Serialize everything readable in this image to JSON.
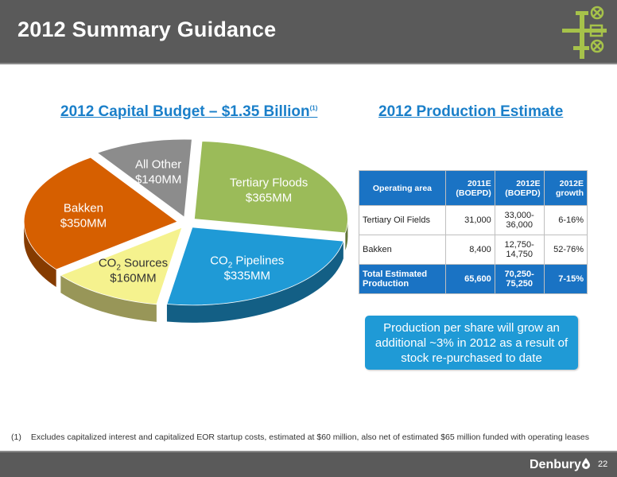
{
  "header": {
    "title": "2012 Summary Guidance"
  },
  "left_section": {
    "title": "2012 Capital Budget – $1.35 Billion",
    "footnote_ref": "(1)"
  },
  "right_section": {
    "title": "2012 Production Estimate"
  },
  "chart_data": {
    "type": "pie",
    "title": "2012 Capital Budget – $1.35 Billion",
    "unit": "$MM",
    "slices": [
      {
        "name": "Tertiary Floods",
        "value": 365,
        "label_line1": "Tertiary Floods",
        "label_line2": "$365MM",
        "color": "#9bbb59"
      },
      {
        "name": "CO2 Pipelines",
        "value": 335,
        "label_line1": "CO",
        "label_sub": "2",
        "label_line1b": " Pipelines",
        "label_line2": "$335MM",
        "color": "#1f9ad6"
      },
      {
        "name": "CO2 Sources",
        "value": 160,
        "label_line1": "CO",
        "label_sub": "2",
        "label_line1b": " Sources",
        "label_line2": "$160MM",
        "color": "#f5f28e"
      },
      {
        "name": "Bakken",
        "value": 350,
        "label_line1": "Bakken",
        "label_line2": "$350MM",
        "color": "#d65f00"
      },
      {
        "name": "All Other",
        "value": 140,
        "label_line1": "All Other",
        "label_line2": "$140MM",
        "color": "#8c8c8c"
      }
    ]
  },
  "table": {
    "headers": [
      {
        "line1": "Operating area",
        "line2": ""
      },
      {
        "line1": "2011E",
        "line2": "(BOEPD)"
      },
      {
        "line1": "2012E",
        "line2": "(BOEPD)"
      },
      {
        "line1": "2012E",
        "line2": "growth"
      }
    ],
    "rows": [
      {
        "area": "Tertiary Oil Fields",
        "y2011": "31,000",
        "y2012": "33,000-\n36,000",
        "growth": "6-16%"
      },
      {
        "area": "Bakken",
        "y2011": "8,400",
        "y2012": "12,750-\n14,750",
        "growth": "52-76%"
      }
    ],
    "total": {
      "area": "Total Estimated\nProduction",
      "y2011": "65,600",
      "y2012": "70,250-\n75,250",
      "growth": "7-15%"
    }
  },
  "callout": {
    "text": "Production per share will grow an additional ~3% in 2012 as a result of stock re-purchased to date"
  },
  "footnote": {
    "num": "(1)",
    "text": "Excludes capitalized interest and capitalized EOR startup costs, estimated at $60 million, also net of estimated $65 million funded with operating leases"
  },
  "footer": {
    "brand": "Denbury",
    "page": "22"
  }
}
